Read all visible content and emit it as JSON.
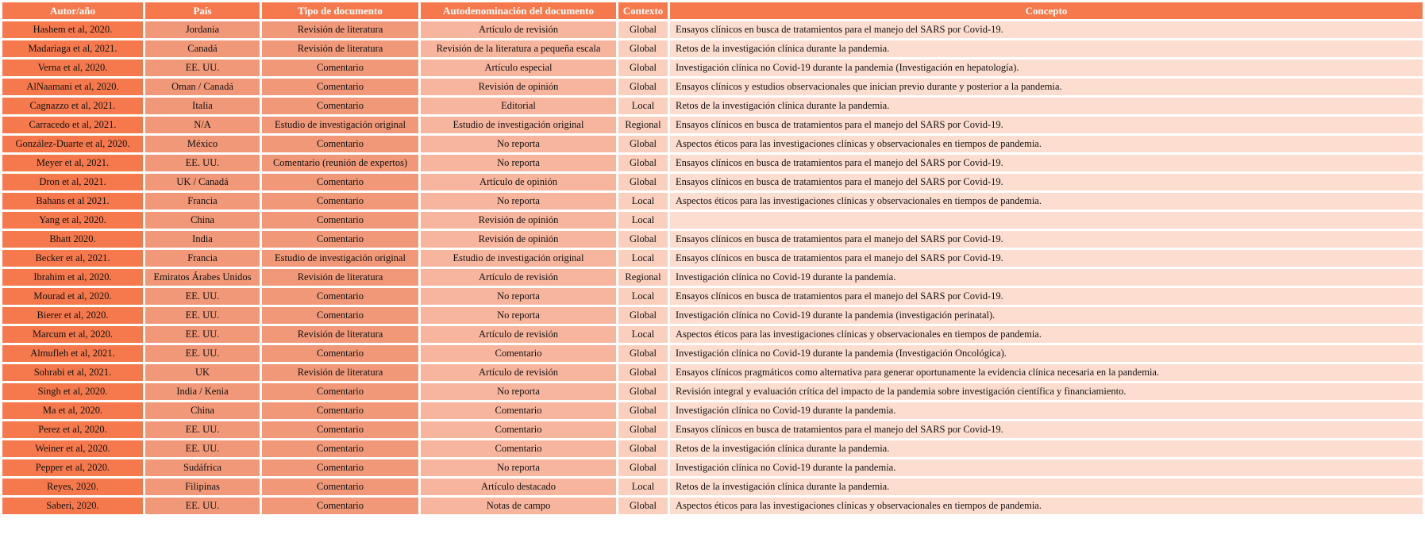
{
  "table": {
    "columns": [
      "Autor/año",
      "País",
      "Tipo de documento",
      "Autodenominación del documento",
      "Contexto",
      "Concepto"
    ],
    "rows": [
      [
        "Hashem et al, 2020.",
        "Jordania",
        "Revisión de literatura",
        "Artículo de revisión",
        "Global",
        "Ensayos clínicos en busca de tratamientos para el manejo del SARS por Covid-19."
      ],
      [
        "Madariaga et al, 2021.",
        "Canadá",
        "Revisión de literatura",
        "Revisión de la literatura a pequeña escala",
        "Global",
        "Retos de la investigación clínica durante la pandemia."
      ],
      [
        "Verna et al, 2020.",
        "EE. UU.",
        "Comentario",
        "Artículo especial",
        "Global",
        "Investigación clínica no Covid-19 durante la pandemia (Investigación en hepatología)."
      ],
      [
        "AlNaamani et al, 2020.",
        "Oman / Canadá",
        "Comentario",
        "Revisión de opinión",
        "Global",
        "Ensayos clínicos y estudios observacionales que inician previo durante y posterior a la pandemia."
      ],
      [
        "Cagnazzo et al, 2021.",
        "Italia",
        "Comentario",
        "Editorial",
        "Local",
        "Retos de la investigación clínica durante la pandemia."
      ],
      [
        "Carracedo et al, 2021.",
        "N/A",
        "Estudio de investigación original",
        "Estudio de investigación original",
        "Regional",
        "Ensayos clínicos en busca de tratamientos para el manejo del SARS por Covid-19."
      ],
      [
        "González-Duarte et al, 2020.",
        "México",
        "Comentario",
        "No reporta",
        "Global",
        "Aspectos éticos para las investigaciones clínicas y observacionales en tiempos de pandemia."
      ],
      [
        "Meyer et al, 2021.",
        "EE. UU.",
        "Comentario (reunión de expertos)",
        "No reporta",
        "Global",
        "Ensayos clínicos en busca de tratamientos para el manejo del SARS por Covid-19."
      ],
      [
        "Dron et al, 2021.",
        "UK / Canadá",
        "Comentario",
        "Artículo de opinión",
        "Global",
        "Ensayos clínicos en busca de tratamientos para el manejo del SARS por Covid-19."
      ],
      [
        "Bahans et al 2021.",
        "Francia",
        "Comentario",
        "No reporta",
        "Local",
        "Aspectos éticos para las investigaciones clínicas y observacionales en tiempos de pandemia."
      ],
      [
        "Yang et al, 2020.",
        "China",
        "Comentario",
        "Revisión de opinión",
        "Local",
        ""
      ],
      [
        "Bhatt 2020.",
        "India",
        "Comentario",
        "Revisión de opinión",
        "Global",
        "Ensayos clínicos en busca de tratamientos para el manejo del SARS por Covid-19."
      ],
      [
        "Becker et al, 2021.",
        "Francia",
        "Estudio de investigación original",
        "Estudio de investigación original",
        "Local",
        "Ensayos clínicos en busca de tratamientos para el manejo del SARS por Covid-19."
      ],
      [
        "Ibrahim et al, 2020.",
        "Emiratos Árabes Unidos",
        "Revisión de literatura",
        "Artículo de revisión",
        "Regional",
        "Investigación clínica no Covid-19 durante la pandemia."
      ],
      [
        "Mourad et al, 2020.",
        "EE. UU.",
        "Comentario",
        "No reporta",
        "Local",
        "Ensayos clínicos en busca de tratamientos para el manejo del SARS por Covid-19."
      ],
      [
        "Bierer et al, 2020.",
        "EE. UU.",
        "Comentario",
        "No reporta",
        "Global",
        "Investigación clínica no Covid-19 durante la pandemia (investigación perinatal)."
      ],
      [
        "Marcum et al, 2020.",
        "EE. UU.",
        "Revisión de literatura",
        "Artículo de revisión",
        "Local",
        "Aspectos éticos para las investigaciones clínicas y observacionales en tiempos de pandemia."
      ],
      [
        "Almufleh et al, 2021.",
        "EE. UU.",
        "Comentario",
        "Comentario",
        "Global",
        "Investigación clínica no Covid-19 durante la pandemia (Investigación Oncológica)."
      ],
      [
        "Sohrabi et al, 2021.",
        "UK",
        "Revisión de literatura",
        "Artículo de revisión",
        "Global",
        "Ensayos clínicos pragmáticos como alternativa para generar oportunamente la evidencia clínica necesaria en la pandemia."
      ],
      [
        "Singh et al, 2020.",
        "India / Kenia",
        "Comentario",
        "No reporta",
        "Global",
        "Revisión integral y evaluación crítica del impacto de la pandemia sobre investigación científica y financiamiento."
      ],
      [
        "Ma et al, 2020.",
        "China",
        "Comentario",
        "Comentario",
        "Global",
        "Investigación clínica no Covid-19 durante la pandemia."
      ],
      [
        "Perez et al, 2020.",
        "EE. UU.",
        "Comentario",
        "Comentario",
        "Global",
        "Ensayos clínicos en busca de tratamientos para el manejo del SARS por Covid-19."
      ],
      [
        "Weiner et al, 2020.",
        "EE. UU.",
        "Comentario",
        "Comentario",
        "Global",
        "Retos de la investigación clínica durante la pandemia."
      ],
      [
        "Pepper et al, 2020.",
        "Sudáfrica",
        "Comentario",
        "No reporta",
        "Global",
        "Investigación clínica no Covid-19 durante la pandemia."
      ],
      [
        "Reyes, 2020.",
        "Filipinas",
        "Comentario",
        "Artículo destacado",
        "Local",
        "Retos de la investigación clínica durante la pandemia."
      ],
      [
        "Saberi, 2020.",
        "EE. UU.",
        "Comentario",
        "Notas de campo",
        "Global",
        "Aspectos éticos para las investigaciones clínicas y observacionales en tiempos de pandemia."
      ]
    ]
  },
  "colors": {
    "header_bg": "#F5794C",
    "author_col_bg": "#F5794C",
    "country_type_col_bg": "#F09878",
    "selfname_col_bg": "#F8B59E",
    "context_col_bg": "#FBCFBD",
    "concept_col_bg": "#FDDDCF",
    "header_text": "#FFFFFF",
    "body_text": "#111111",
    "grid": "#FFFFFF"
  }
}
